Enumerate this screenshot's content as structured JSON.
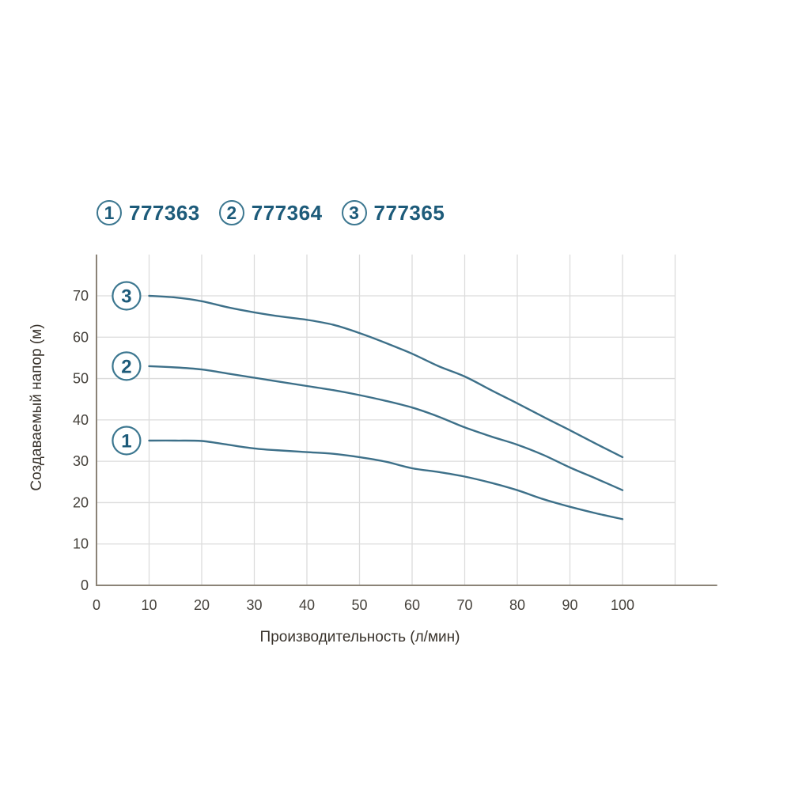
{
  "legend": {
    "items": [
      {
        "badge": "1",
        "label": "777363"
      },
      {
        "badge": "2",
        "label": "777364"
      },
      {
        "badge": "3",
        "label": "777365"
      }
    ]
  },
  "chart_data": {
    "type": "line",
    "title": "",
    "xlabel": "Производительность (л/мин)",
    "ylabel": "Создаваемый напор (м)",
    "xlim": [
      0,
      118
    ],
    "ylim": [
      0,
      80
    ],
    "x_ticks": [
      0,
      10,
      20,
      30,
      40,
      50,
      60,
      70,
      80,
      90,
      100
    ],
    "y_ticks": [
      0,
      10,
      20,
      30,
      40,
      50,
      60,
      70
    ],
    "grid": {
      "on": true,
      "x_grid_max": 110,
      "y_grid_max": 70
    },
    "legend_position": "top",
    "series": [
      {
        "name": "777363",
        "badge": "1",
        "x": [
          10,
          15,
          20,
          25,
          30,
          35,
          40,
          45,
          50,
          55,
          60,
          65,
          70,
          75,
          80,
          85,
          90,
          95,
          100
        ],
        "y": [
          35,
          35,
          34.9,
          34,
          33.1,
          32.6,
          32.2,
          31.8,
          31,
          29.9,
          28.3,
          27.4,
          26.3,
          24.8,
          23,
          20.8,
          19,
          17.4,
          16
        ]
      },
      {
        "name": "777364",
        "badge": "2",
        "x": [
          10,
          15,
          20,
          25,
          30,
          35,
          40,
          45,
          50,
          55,
          60,
          65,
          70,
          75,
          80,
          85,
          90,
          95,
          100
        ],
        "y": [
          53,
          52.7,
          52.2,
          51.2,
          50.2,
          49.2,
          48.2,
          47.2,
          46,
          44.6,
          43,
          40.8,
          38.2,
          36,
          34,
          31.5,
          28.5,
          25.8,
          23
        ]
      },
      {
        "name": "777365",
        "badge": "3",
        "x": [
          10,
          15,
          20,
          25,
          30,
          35,
          40,
          45,
          50,
          55,
          60,
          65,
          70,
          75,
          80,
          85,
          90,
          95,
          100
        ],
        "y": [
          70,
          69.6,
          68.7,
          67.2,
          66,
          65,
          64.2,
          63,
          61,
          58.6,
          56,
          53,
          50.5,
          47.2,
          44,
          40.7,
          37.5,
          34.2,
          31
        ]
      }
    ],
    "colors": {
      "curve": "#3d7089",
      "axis": "#8b8377",
      "grid": "#dcdcdc",
      "tick_text": "#45413b",
      "title_text": "#39332c",
      "legend_text": "#1d5b7a",
      "badge_border": "#3c7790"
    }
  }
}
